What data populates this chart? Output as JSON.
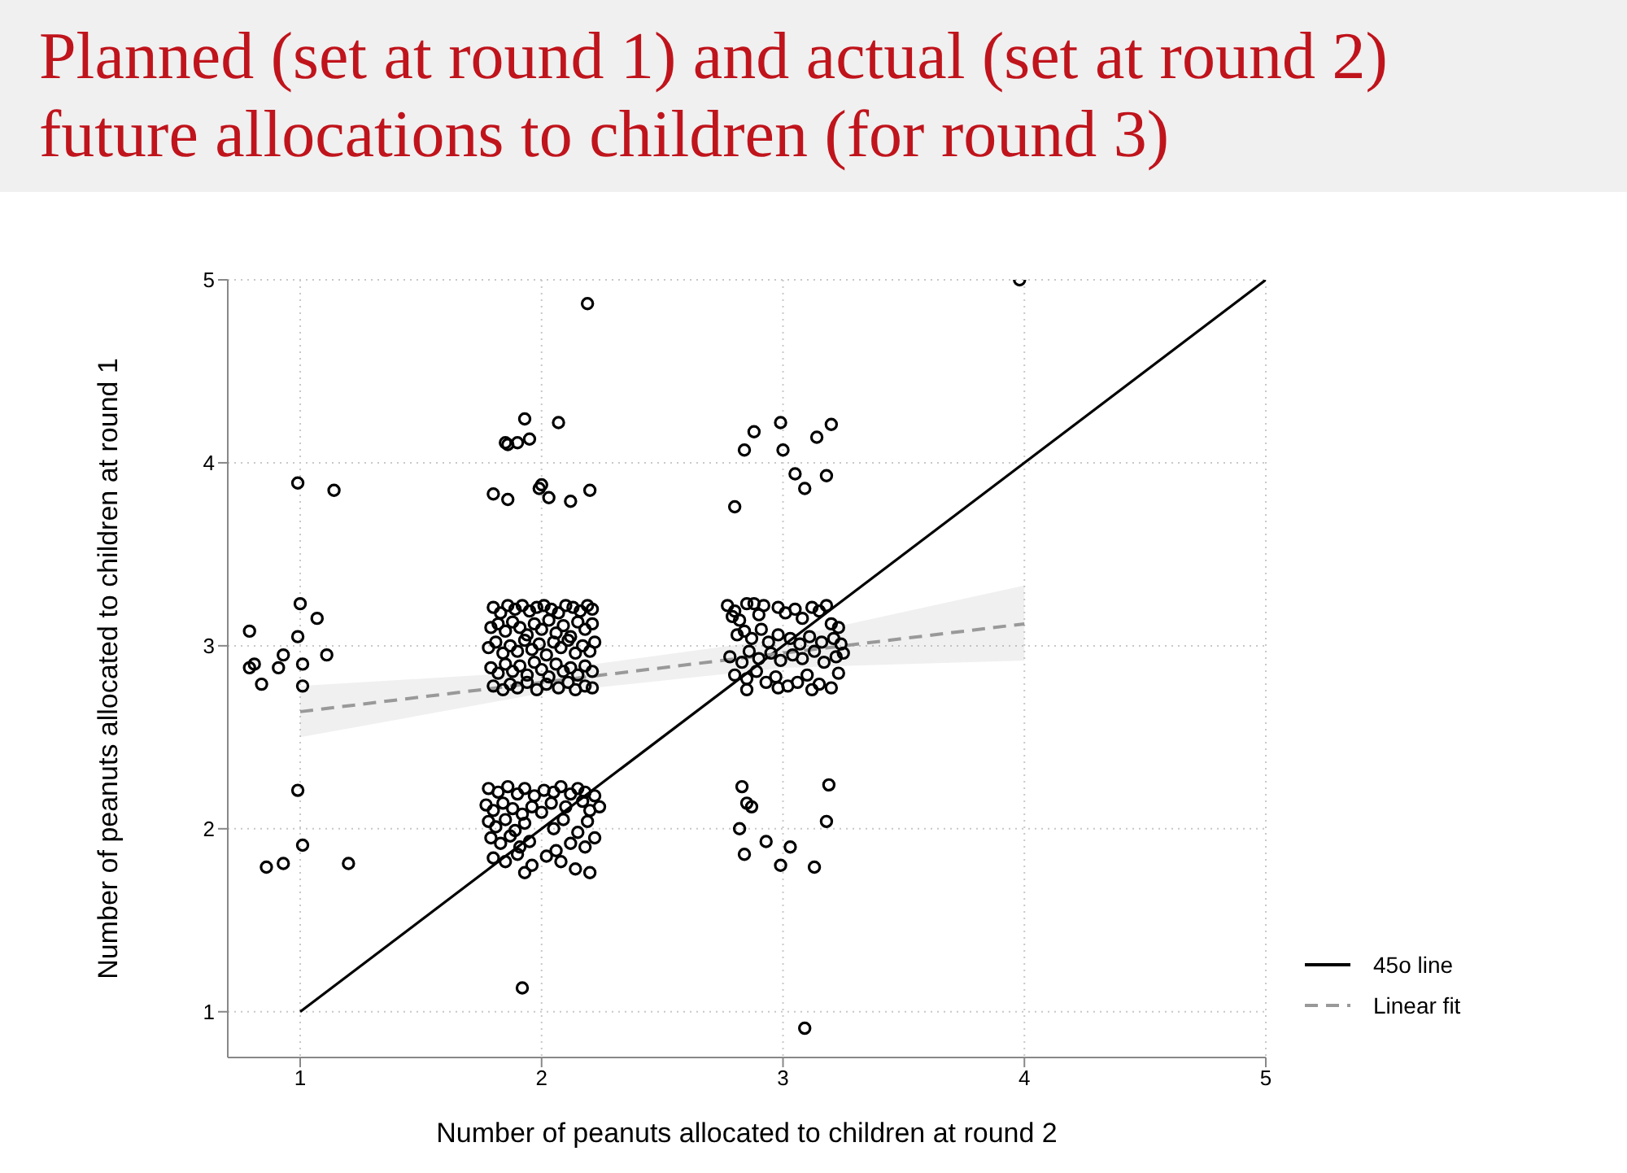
{
  "chart_data": {
    "type": "scatter",
    "title": "Planned (set at round 1) and actual (set at round 2) future allocations to children (for round 3)",
    "xlabel": "Number of peanuts allocated to children at round 2",
    "ylabel": "Number of peanuts allocated to children at round 1",
    "xlim": [
      0.7,
      5
    ],
    "ylim": [
      0.75,
      5
    ],
    "xticks": [
      1,
      2,
      3,
      4,
      5
    ],
    "yticks": [
      1,
      2,
      3,
      4,
      5
    ],
    "grid": true,
    "legend": "right",
    "series": [
      {
        "color": "#000000",
        "marker": "circle",
        "x": [
          0.79,
          0.79,
          0.81,
          0.84,
          0.91,
          0.93,
          0.99,
          1.0,
          1.01,
          1.01,
          1.07,
          1.11,
          0.99,
          1.14,
          0.99,
          1.01,
          0.86,
          0.93,
          1.2,
          2.19,
          1.93,
          2.07,
          1.85,
          1.86,
          1.9,
          1.95,
          1.8,
          1.86,
          2.0,
          1.99,
          2.03,
          2.12,
          2.2,
          1.92,
          2.99,
          2.88,
          2.84,
          3.0,
          3.14,
          3.2,
          3.05,
          3.09,
          3.18,
          2.8,
          2.83,
          3.19,
          2.85,
          2.87,
          3.18,
          2.82,
          2.93,
          3.03,
          2.84,
          2.99,
          3.13,
          3.09,
          3.98,
          1.8,
          1.83,
          1.86,
          1.89,
          1.92,
          1.95,
          1.98,
          2.01,
          2.04,
          2.07,
          2.1,
          2.13,
          2.16,
          2.19,
          2.21,
          1.79,
          1.82,
          1.85,
          1.88,
          1.91,
          1.94,
          1.97,
          2.0,
          2.03,
          2.06,
          2.09,
          2.12,
          2.15,
          2.18,
          2.21,
          1.78,
          1.81,
          1.84,
          1.87,
          1.9,
          1.93,
          1.96,
          1.99,
          2.02,
          2.05,
          2.08,
          2.11,
          2.14,
          2.17,
          2.2,
          2.22,
          1.79,
          1.82,
          1.85,
          1.88,
          1.91,
          1.94,
          1.97,
          2.0,
          2.03,
          2.06,
          2.09,
          2.12,
          2.15,
          2.18,
          2.21,
          1.8,
          1.84,
          1.87,
          1.9,
          1.94,
          1.98,
          2.02,
          2.07,
          2.11,
          2.14,
          2.18,
          2.21,
          1.78,
          1.82,
          1.86,
          1.9,
          1.93,
          1.97,
          2.01,
          2.05,
          2.08,
          2.12,
          2.15,
          2.18,
          2.22,
          1.77,
          1.8,
          1.84,
          1.88,
          1.92,
          1.96,
          2.0,
          2.04,
          2.1,
          2.17,
          2.2,
          2.24,
          1.78,
          1.81,
          1.85,
          1.89,
          1.93,
          2.05,
          2.09,
          2.15,
          2.19,
          1.79,
          1.83,
          1.87,
          1.91,
          1.95,
          2.06,
          2.12,
          2.18,
          2.22,
          1.8,
          1.85,
          1.9,
          1.96,
          2.02,
          2.08,
          2.14,
          2.2,
          1.93,
          2.77,
          2.8,
          2.85,
          2.88,
          2.92,
          2.98,
          3.01,
          3.05,
          3.12,
          3.15,
          3.18,
          2.79,
          2.82,
          2.9,
          3.08,
          3.2,
          3.23,
          2.81,
          2.84,
          2.87,
          2.91,
          2.94,
          2.98,
          3.03,
          3.07,
          3.11,
          3.16,
          3.21,
          3.24,
          2.78,
          2.83,
          2.86,
          2.9,
          2.95,
          2.99,
          3.04,
          3.08,
          3.13,
          3.17,
          3.22,
          3.25,
          2.8,
          2.85,
          2.89,
          2.93,
          2.97,
          3.02,
          3.06,
          3.1,
          3.15,
          3.2,
          3.23,
          2.85,
          2.98,
          3.12
        ],
        "values": [
          3.08,
          2.88,
          2.9,
          2.79,
          2.88,
          2.95,
          3.05,
          3.23,
          2.9,
          2.78,
          3.15,
          2.95,
          3.89,
          3.85,
          2.21,
          1.91,
          1.79,
          1.81,
          1.81,
          4.87,
          4.24,
          4.22,
          4.11,
          4.1,
          4.11,
          4.13,
          3.83,
          3.8,
          3.88,
          3.86,
          3.81,
          3.79,
          3.85,
          1.13,
          4.22,
          4.17,
          4.07,
          4.07,
          4.14,
          4.21,
          3.94,
          3.86,
          3.93,
          3.76,
          2.23,
          2.24,
          2.14,
          2.12,
          2.04,
          2.0,
          1.93,
          1.9,
          1.86,
          1.8,
          1.79,
          0.91,
          5.0,
          3.21,
          3.18,
          3.22,
          3.2,
          3.22,
          3.19,
          3.21,
          3.22,
          3.2,
          3.18,
          3.22,
          3.21,
          3.19,
          3.22,
          3.2,
          3.1,
          3.12,
          3.08,
          3.13,
          3.1,
          3.06,
          3.12,
          3.09,
          3.14,
          3.07,
          3.11,
          3.05,
          3.13,
          3.09,
          3.12,
          2.99,
          3.02,
          2.96,
          3.0,
          2.97,
          3.03,
          2.98,
          3.01,
          2.95,
          3.02,
          2.99,
          3.03,
          2.96,
          3.0,
          2.97,
          3.02,
          2.88,
          2.85,
          2.9,
          2.86,
          2.89,
          2.84,
          2.91,
          2.87,
          2.83,
          2.9,
          2.86,
          2.88,
          2.84,
          2.89,
          2.86,
          2.78,
          2.76,
          2.79,
          2.77,
          2.8,
          2.76,
          2.79,
          2.77,
          2.8,
          2.76,
          2.78,
          2.77,
          2.22,
          2.2,
          2.23,
          2.19,
          2.22,
          2.18,
          2.21,
          2.2,
          2.23,
          2.19,
          2.22,
          2.2,
          2.18,
          2.13,
          2.1,
          2.14,
          2.11,
          2.08,
          2.12,
          2.09,
          2.14,
          2.12,
          2.15,
          2.1,
          2.12,
          2.04,
          2.01,
          2.05,
          1.99,
          2.03,
          2.0,
          2.05,
          1.98,
          2.04,
          1.95,
          1.92,
          1.96,
          1.9,
          1.93,
          1.88,
          1.92,
          1.9,
          1.95,
          1.84,
          1.82,
          1.86,
          1.8,
          1.85,
          1.82,
          1.78,
          1.76,
          1.76,
          3.22,
          3.19,
          3.23,
          3.23,
          3.22,
          3.21,
          3.18,
          3.2,
          3.21,
          3.19,
          3.22,
          3.16,
          3.14,
          3.17,
          3.15,
          3.12,
          3.1,
          3.06,
          3.08,
          3.04,
          3.09,
          3.02,
          3.06,
          3.04,
          3.01,
          3.05,
          3.02,
          3.04,
          3.01,
          2.94,
          2.91,
          2.97,
          2.93,
          2.96,
          2.92,
          2.95,
          2.93,
          2.97,
          2.91,
          2.94,
          2.96,
          2.84,
          2.82,
          2.86,
          2.8,
          2.83,
          2.78,
          2.8,
          2.84,
          2.79,
          2.77,
          2.85,
          2.76,
          2.77,
          2.76
        ]
      },
      {
        "type": "line",
        "name": "45o line",
        "color": "#000000",
        "line_style": "solid",
        "marker": "none",
        "x": [
          1,
          5
        ],
        "values": [
          1,
          5
        ]
      },
      {
        "type": "line",
        "name": "Linear fit",
        "color": "#999999",
        "line_style": "dashed",
        "marker": "none",
        "x": [
          1,
          2,
          3,
          4
        ],
        "values": [
          2.64,
          2.8,
          2.96,
          3.12
        ],
        "lower": [
          2.5,
          2.74,
          2.88,
          2.92
        ],
        "upper": [
          2.78,
          2.86,
          3.04,
          3.33
        ]
      }
    ]
  }
}
